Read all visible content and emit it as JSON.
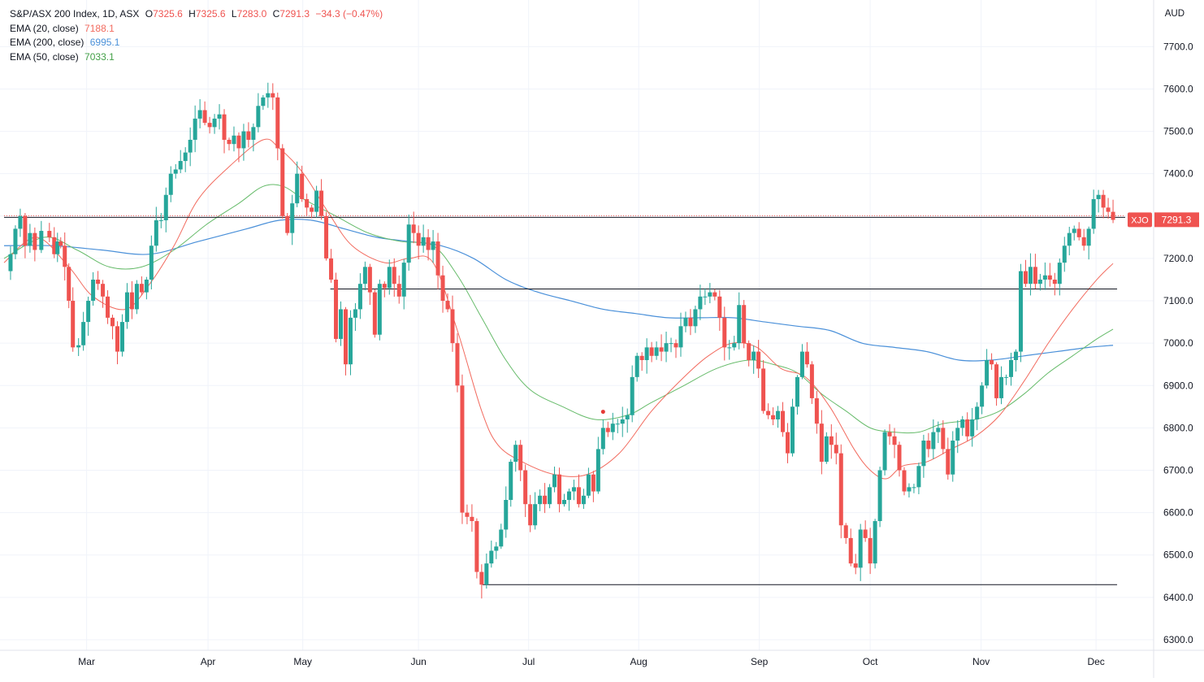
{
  "colors": {
    "up": "#26a69a",
    "down": "#ef5350",
    "ema20": "#f26b5f",
    "ema200": "#4a90d9",
    "ema50": "#66bb6a",
    "grid": "#f0f3fa",
    "axis_text": "#131722",
    "price_tag_bg": "#ef5350"
  },
  "legend": {
    "symbol": "S&P/ASX 200 Index, 1D, ASX",
    "o_label": "O",
    "o": "7325.6",
    "h_label": "H",
    "h": "7325.6",
    "l_label": "L",
    "l": "7283.0",
    "c_label": "C",
    "c": "7291.3",
    "change": "−34.3 (−0.47%)",
    "ema20_label": "EMA (20, close)",
    "ema20_value": "7188.1",
    "ema200_label": "EMA (200, close)",
    "ema200_value": "6995.1",
    "ema50_label": "EMA (50, close)",
    "ema50_value": "7033.1"
  },
  "axis": {
    "currency": "AUD"
  },
  "price_tag": {
    "ticker": "XJO",
    "value": "7291.3"
  },
  "chart_data": {
    "type": "candlestick",
    "title": "S&P/ASX 200 Index, 1D, ASX",
    "x_range": [
      0,
      1385
    ],
    "ylim": [
      6275,
      7810
    ],
    "y_ticks": [
      "6300.0",
      "6400.0",
      "6500.0",
      "6600.0",
      "6700.0",
      "6800.0",
      "6900.0",
      "7000.0",
      "7100.0",
      "7200.0",
      "7300.0",
      "7400.0",
      "7500.0",
      "7600.0",
      "7700.0"
    ],
    "x_ticks": [
      {
        "label": "Mar",
        "x": 102
      },
      {
        "label": "Apr",
        "x": 252
      },
      {
        "label": "May",
        "x": 369
      },
      {
        "label": "Jun",
        "x": 512
      },
      {
        "label": "Jul",
        "x": 648
      },
      {
        "label": "Aug",
        "x": 784
      },
      {
        "label": "Sep",
        "x": 933
      },
      {
        "label": "Oct",
        "x": 1070
      },
      {
        "label": "Nov",
        "x": 1207
      },
      {
        "label": "Dec",
        "x": 1349
      }
    ],
    "price_points": [
      [
        0,
        7170
      ],
      [
        8,
        7210
      ],
      [
        14,
        7270
      ],
      [
        20,
        7300
      ],
      [
        26,
        7230
      ],
      [
        32,
        7260
      ],
      [
        38,
        7220
      ],
      [
        46,
        7265
      ],
      [
        56,
        7250
      ],
      [
        62,
        7210
      ],
      [
        66,
        7240
      ],
      [
        70,
        7230
      ],
      [
        75,
        7180
      ],
      [
        80,
        7100
      ],
      [
        85,
        6990
      ],
      [
        92,
        6995
      ],
      [
        98,
        7050
      ],
      [
        104,
        7100
      ],
      [
        110,
        7150
      ],
      [
        116,
        7140
      ],
      [
        122,
        7110
      ],
      [
        128,
        7060
      ],
      [
        134,
        7040
      ],
      [
        140,
        6980
      ],
      [
        146,
        7050
      ],
      [
        152,
        7120
      ],
      [
        158,
        7080
      ],
      [
        164,
        7140
      ],
      [
        170,
        7120
      ],
      [
        176,
        7150
      ],
      [
        182,
        7230
      ],
      [
        188,
        7290
      ],
      [
        194,
        7290
      ],
      [
        200,
        7350
      ],
      [
        206,
        7400
      ],
      [
        212,
        7410
      ],
      [
        218,
        7430
      ],
      [
        224,
        7450
      ],
      [
        230,
        7480
      ],
      [
        236,
        7530
      ],
      [
        242,
        7550
      ],
      [
        248,
        7520
      ],
      [
        254,
        7510
      ],
      [
        260,
        7530
      ],
      [
        266,
        7540
      ],
      [
        272,
        7480
      ],
      [
        278,
        7470
      ],
      [
        284,
        7490
      ],
      [
        290,
        7460
      ],
      [
        296,
        7500
      ],
      [
        302,
        7480
      ],
      [
        308,
        7510
      ],
      [
        314,
        7560
      ],
      [
        320,
        7580
      ],
      [
        326,
        7590
      ],
      [
        332,
        7580
      ],
      [
        338,
        7460
      ],
      [
        344,
        7300
      ],
      [
        350,
        7260
      ],
      [
        356,
        7330
      ],
      [
        362,
        7400
      ],
      [
        368,
        7340
      ],
      [
        374,
        7320
      ],
      [
        380,
        7310
      ],
      [
        386,
        7360
      ],
      [
        392,
        7300
      ],
      [
        398,
        7200
      ],
      [
        404,
        7150
      ],
      [
        410,
        7010
      ],
      [
        416,
        7080
      ],
      [
        422,
        6950
      ],
      [
        428,
        7060
      ],
      [
        434,
        7080
      ],
      [
        440,
        7140
      ],
      [
        446,
        7180
      ],
      [
        452,
        7120
      ],
      [
        458,
        7020
      ],
      [
        464,
        7140
      ],
      [
        470,
        7130
      ],
      [
        476,
        7180
      ],
      [
        482,
        7140
      ],
      [
        488,
        7110
      ],
      [
        494,
        7190
      ],
      [
        500,
        7280
      ],
      [
        506,
        7260
      ],
      [
        512,
        7230
      ],
      [
        518,
        7250
      ],
      [
        524,
        7220
      ],
      [
        530,
        7240
      ],
      [
        536,
        7160
      ],
      [
        542,
        7100
      ],
      [
        548,
        7080
      ],
      [
        554,
        7000
      ],
      [
        560,
        6900
      ],
      [
        566,
        6600
      ],
      [
        572,
        6590
      ],
      [
        578,
        6580
      ],
      [
        584,
        6460
      ],
      [
        590,
        6430
      ],
      [
        596,
        6480
      ],
      [
        602,
        6510
      ],
      [
        608,
        6520
      ],
      [
        614,
        6560
      ],
      [
        620,
        6630
      ],
      [
        626,
        6720
      ],
      [
        632,
        6760
      ],
      [
        638,
        6700
      ],
      [
        644,
        6620
      ],
      [
        650,
        6570
      ],
      [
        656,
        6620
      ],
      [
        662,
        6640
      ],
      [
        668,
        6620
      ],
      [
        674,
        6660
      ],
      [
        680,
        6690
      ],
      [
        686,
        6620
      ],
      [
        692,
        6630
      ],
      [
        698,
        6650
      ],
      [
        704,
        6660
      ],
      [
        710,
        6620
      ],
      [
        716,
        6640
      ],
      [
        722,
        6690
      ],
      [
        728,
        6650
      ],
      [
        734,
        6750
      ],
      [
        740,
        6800
      ],
      [
        746,
        6790
      ],
      [
        752,
        6810
      ],
      [
        758,
        6810
      ],
      [
        764,
        6820
      ],
      [
        770,
        6830
      ],
      [
        776,
        6920
      ],
      [
        782,
        6970
      ],
      [
        788,
        6960
      ],
      [
        794,
        6990
      ],
      [
        800,
        6970
      ],
      [
        806,
        6990
      ],
      [
        812,
        6980
      ],
      [
        818,
        7000
      ],
      [
        824,
        7000
      ],
      [
        830,
        6990
      ],
      [
        836,
        7040
      ],
      [
        842,
        7060
      ],
      [
        848,
        7040
      ],
      [
        854,
        7080
      ],
      [
        860,
        7110
      ],
      [
        866,
        7110
      ],
      [
        872,
        7120
      ],
      [
        878,
        7110
      ],
      [
        884,
        7060
      ],
      [
        890,
        6990
      ],
      [
        896,
        6990
      ],
      [
        902,
        7000
      ],
      [
        908,
        7090
      ],
      [
        914,
        7000
      ],
      [
        920,
        6960
      ],
      [
        926,
        6980
      ],
      [
        932,
        6940
      ],
      [
        938,
        6840
      ],
      [
        944,
        6830
      ],
      [
        950,
        6820
      ],
      [
        956,
        6840
      ],
      [
        962,
        6790
      ],
      [
        968,
        6740
      ],
      [
        974,
        6850
      ],
      [
        980,
        6920
      ],
      [
        986,
        6980
      ],
      [
        992,
        6950
      ],
      [
        998,
        6870
      ],
      [
        1004,
        6810
      ],
      [
        1010,
        6720
      ],
      [
        1016,
        6780
      ],
      [
        1022,
        6760
      ],
      [
        1028,
        6740
      ],
      [
        1034,
        6570
      ],
      [
        1040,
        6540
      ],
      [
        1046,
        6480
      ],
      [
        1052,
        6470
      ],
      [
        1058,
        6560
      ],
      [
        1064,
        6540
      ],
      [
        1070,
        6480
      ],
      [
        1076,
        6580
      ],
      [
        1082,
        6700
      ],
      [
        1088,
        6790
      ],
      [
        1094,
        6780
      ],
      [
        1100,
        6760
      ],
      [
        1106,
        6700
      ],
      [
        1112,
        6650
      ],
      [
        1118,
        6660
      ],
      [
        1124,
        6660
      ],
      [
        1130,
        6710
      ],
      [
        1136,
        6770
      ],
      [
        1142,
        6750
      ],
      [
        1148,
        6790
      ],
      [
        1154,
        6800
      ],
      [
        1160,
        6750
      ],
      [
        1166,
        6690
      ],
      [
        1172,
        6770
      ],
      [
        1178,
        6800
      ],
      [
        1184,
        6820
      ],
      [
        1190,
        6780
      ],
      [
        1196,
        6820
      ],
      [
        1202,
        6850
      ],
      [
        1208,
        6900
      ],
      [
        1214,
        6960
      ],
      [
        1220,
        6950
      ],
      [
        1226,
        6870
      ],
      [
        1232,
        6920
      ],
      [
        1238,
        6920
      ],
      [
        1244,
        6960
      ],
      [
        1250,
        6980
      ],
      [
        1256,
        7170
      ],
      [
        1262,
        7140
      ],
      [
        1268,
        7180
      ],
      [
        1274,
        7140
      ],
      [
        1280,
        7150
      ],
      [
        1286,
        7160
      ],
      [
        1292,
        7150
      ],
      [
        1298,
        7140
      ],
      [
        1304,
        7190
      ],
      [
        1310,
        7230
      ],
      [
        1316,
        7260
      ],
      [
        1322,
        7270
      ],
      [
        1328,
        7250
      ],
      [
        1334,
        7230
      ],
      [
        1340,
        7270
      ],
      [
        1346,
        7340
      ],
      [
        1352,
        7350
      ],
      [
        1358,
        7320
      ],
      [
        1364,
        7310
      ],
      [
        1370,
        7291
      ]
    ],
    "ema20": [
      [
        0,
        7190
      ],
      [
        40,
        7250
      ],
      [
        80,
        7180
      ],
      [
        110,
        7110
      ],
      [
        150,
        7080
      ],
      [
        180,
        7140
      ],
      [
        210,
        7230
      ],
      [
        240,
        7340
      ],
      [
        280,
        7420
      ],
      [
        320,
        7480
      ],
      [
        340,
        7460
      ],
      [
        370,
        7400
      ],
      [
        400,
        7310
      ],
      [
        430,
        7230
      ],
      [
        470,
        7190
      ],
      [
        500,
        7200
      ],
      [
        530,
        7190
      ],
      [
        560,
        7030
      ],
      [
        590,
        6840
      ],
      [
        610,
        6760
      ],
      [
        640,
        6720
      ],
      [
        680,
        6690
      ],
      [
        720,
        6690
      ],
      [
        760,
        6740
      ],
      [
        800,
        6840
      ],
      [
        840,
        6920
      ],
      [
        870,
        6970
      ],
      [
        900,
        7000
      ],
      [
        930,
        6990
      ],
      [
        960,
        6940
      ],
      [
        990,
        6920
      ],
      [
        1020,
        6850
      ],
      [
        1050,
        6750
      ],
      [
        1070,
        6700
      ],
      [
        1090,
        6680
      ],
      [
        1110,
        6710
      ],
      [
        1140,
        6720
      ],
      [
        1170,
        6750
      ],
      [
        1200,
        6780
      ],
      [
        1230,
        6830
      ],
      [
        1260,
        6910
      ],
      [
        1290,
        7000
      ],
      [
        1320,
        7080
      ],
      [
        1350,
        7150
      ],
      [
        1370,
        7188
      ]
    ],
    "ema50": [
      [
        0,
        7200
      ],
      [
        50,
        7250
      ],
      [
        90,
        7220
      ],
      [
        130,
        7180
      ],
      [
        170,
        7180
      ],
      [
        210,
        7220
      ],
      [
        250,
        7280
      ],
      [
        290,
        7330
      ],
      [
        320,
        7370
      ],
      [
        345,
        7370
      ],
      [
        370,
        7340
      ],
      [
        410,
        7300
      ],
      [
        450,
        7260
      ],
      [
        490,
        7240
      ],
      [
        530,
        7230
      ],
      [
        560,
        7160
      ],
      [
        590,
        7060
      ],
      [
        620,
        6960
      ],
      [
        650,
        6890
      ],
      [
        690,
        6850
      ],
      [
        730,
        6820
      ],
      [
        770,
        6830
      ],
      [
        800,
        6860
      ],
      [
        840,
        6900
      ],
      [
        880,
        6940
      ],
      [
        920,
        6960
      ],
      [
        950,
        6950
      ],
      [
        980,
        6930
      ],
      [
        1010,
        6880
      ],
      [
        1040,
        6840
      ],
      [
        1070,
        6800
      ],
      [
        1100,
        6790
      ],
      [
        1130,
        6790
      ],
      [
        1160,
        6810
      ],
      [
        1200,
        6820
      ],
      [
        1230,
        6840
      ],
      [
        1260,
        6880
      ],
      [
        1290,
        6930
      ],
      [
        1320,
        6970
      ],
      [
        1350,
        7010
      ],
      [
        1370,
        7033
      ]
    ],
    "ema200": [
      [
        0,
        7230
      ],
      [
        60,
        7230
      ],
      [
        120,
        7220
      ],
      [
        180,
        7210
      ],
      [
        240,
        7240
      ],
      [
        300,
        7270
      ],
      [
        340,
        7290
      ],
      [
        380,
        7290
      ],
      [
        420,
        7270
      ],
      [
        460,
        7250
      ],
      [
        500,
        7240
      ],
      [
        540,
        7230
      ],
      [
        580,
        7200
      ],
      [
        620,
        7150
      ],
      [
        660,
        7120
      ],
      [
        700,
        7100
      ],
      [
        740,
        7080
      ],
      [
        780,
        7070
      ],
      [
        820,
        7060
      ],
      [
        860,
        7060
      ],
      [
        900,
        7060
      ],
      [
        940,
        7050
      ],
      [
        980,
        7040
      ],
      [
        1020,
        7030
      ],
      [
        1060,
        7000
      ],
      [
        1100,
        6990
      ],
      [
        1140,
        6980
      ],
      [
        1180,
        6960
      ],
      [
        1220,
        6960
      ],
      [
        1260,
        6970
      ],
      [
        1300,
        6980
      ],
      [
        1340,
        6990
      ],
      [
        1370,
        6995
      ]
    ],
    "horizontal_lines": [
      {
        "price": 7297,
        "x_start": 0,
        "x_end": 1385,
        "style": "dotted",
        "color": "#ef5350"
      },
      {
        "price": 7297,
        "x_start": 0,
        "x_end": 1385,
        "style": "solid",
        "color": "#131722"
      },
      {
        "price": 7128,
        "x_start": 403,
        "x_end": 1375,
        "style": "solid",
        "color": "#131722"
      },
      {
        "price": 6430,
        "x_start": 591,
        "x_end": 1375,
        "style": "solid",
        "color": "#131722"
      }
    ],
    "markers": [
      {
        "x": 740,
        "price": 6838,
        "color": "#e53935"
      }
    ]
  }
}
